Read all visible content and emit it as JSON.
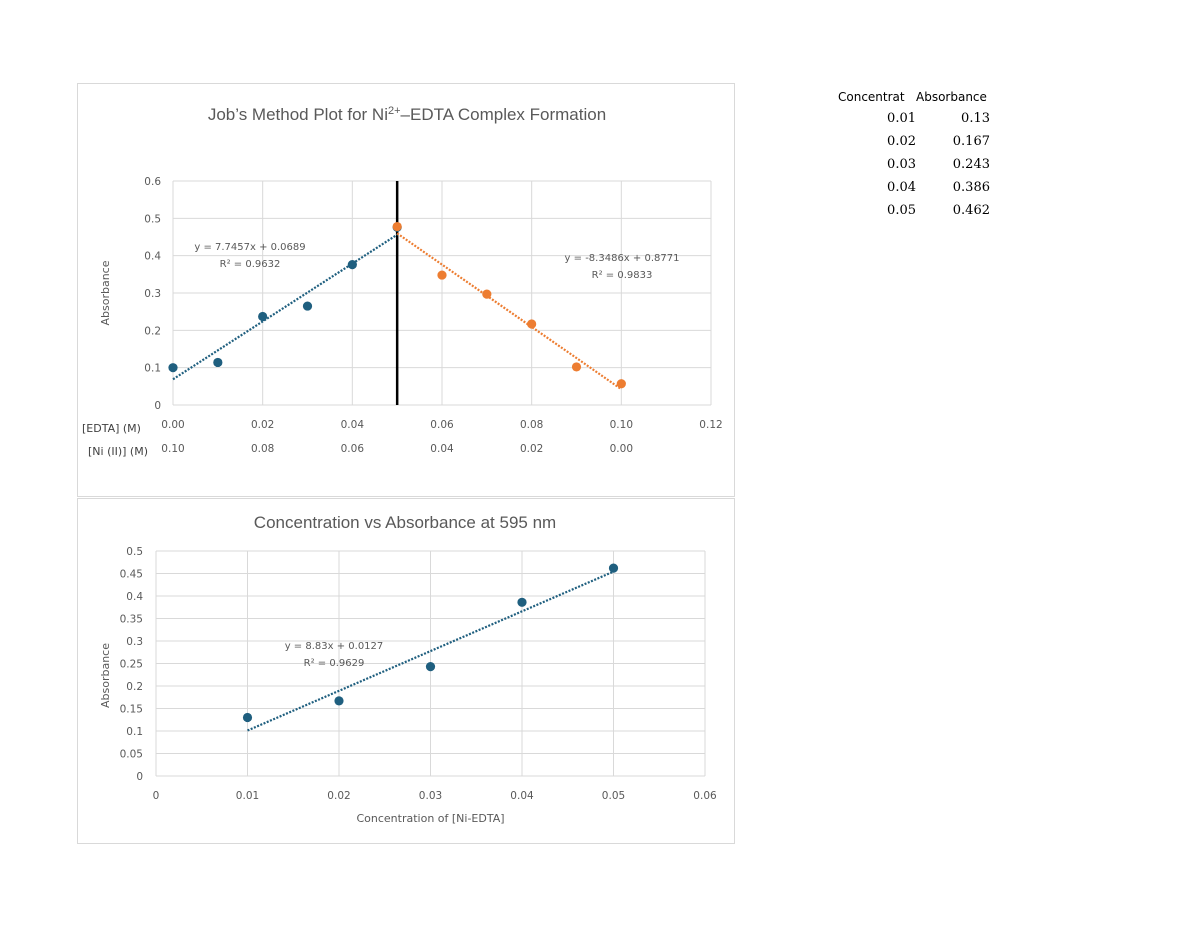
{
  "table": {
    "headers": [
      "Concentrat",
      "Absorbance"
    ],
    "rows": [
      [
        "0.01",
        "0.13"
      ],
      [
        "0.02",
        "0.167"
      ],
      [
        "0.03",
        "0.243"
      ],
      [
        "0.04",
        "0.386"
      ],
      [
        "0.05",
        "0.462"
      ]
    ]
  },
  "chart_data": [
    {
      "type": "scatter",
      "title": "Job’s Method Plot for Ni²⁺–EDTA Complex Formation",
      "ylabel": "Absorbance",
      "xlabel_rows": [
        "[EDTA] (M)",
        "[Ni (II)] (M)"
      ],
      "xlim": [
        0,
        0.12
      ],
      "ylim": [
        0,
        0.6
      ],
      "x_ticks": [
        "0.00",
        "0.02",
        "0.04",
        "0.06",
        "0.08",
        "0.10",
        "0.12"
      ],
      "x_ticks_row2": [
        "0.10",
        "0.08",
        "0.06",
        "0.04",
        "0.02",
        "0.00"
      ],
      "y_ticks": [
        "0",
        "0.1",
        "0.2",
        "0.3",
        "0.4",
        "0.5",
        "0.6"
      ],
      "grid": true,
      "vertical_line_x": 0.05,
      "series": [
        {
          "color": "#1f5f7f",
          "x": [
            0.0,
            0.01,
            0.02,
            0.03,
            0.04,
            0.05
          ],
          "y": [
            0.1,
            0.114,
            0.237,
            0.265,
            0.376,
            0.476
          ],
          "trendline": {
            "slope": 7.7457,
            "intercept": 0.0689,
            "x_range": [
              0,
              0.05
            ],
            "equation": "y = 7.7457x + 0.0689",
            "r2": "R² = 0.9632"
          }
        },
        {
          "color": "#ed7d31",
          "x": [
            0.05,
            0.06,
            0.07,
            0.08,
            0.09,
            0.1
          ],
          "y": [
            0.478,
            0.348,
            0.297,
            0.217,
            0.102,
            0.057
          ],
          "trendline": {
            "slope": -8.3486,
            "intercept": 0.8771,
            "x_range": [
              0.05,
              0.1
            ],
            "equation": "y = -8.3486x + 0.8771",
            "r2": "R² = 0.9833"
          }
        }
      ]
    },
    {
      "type": "scatter",
      "title": "Concentration vs Absorbance at 595 nm",
      "xlabel": "Concentration of [Ni-EDTA]",
      "ylabel": "Absorbance",
      "xlim": [
        0,
        0.06
      ],
      "ylim": [
        0,
        0.5
      ],
      "x_ticks": [
        "0",
        "0.01",
        "0.02",
        "0.03",
        "0.04",
        "0.05",
        "0.06"
      ],
      "y_ticks": [
        "0",
        "0.05",
        "0.1",
        "0.15",
        "0.2",
        "0.25",
        "0.3",
        "0.35",
        "0.4",
        "0.45",
        "0.5"
      ],
      "grid": true,
      "series": [
        {
          "color": "#1f5f7f",
          "x": [
            0.01,
            0.02,
            0.03,
            0.04,
            0.05
          ],
          "y": [
            0.13,
            0.167,
            0.243,
            0.386,
            0.462
          ],
          "trendline": {
            "slope": 8.83,
            "intercept": 0.0127,
            "x_range": [
              0.01,
              0.05
            ],
            "equation": "y = 8.83x + 0.0127",
            "r2": "R² = 0.9629"
          }
        }
      ]
    }
  ]
}
